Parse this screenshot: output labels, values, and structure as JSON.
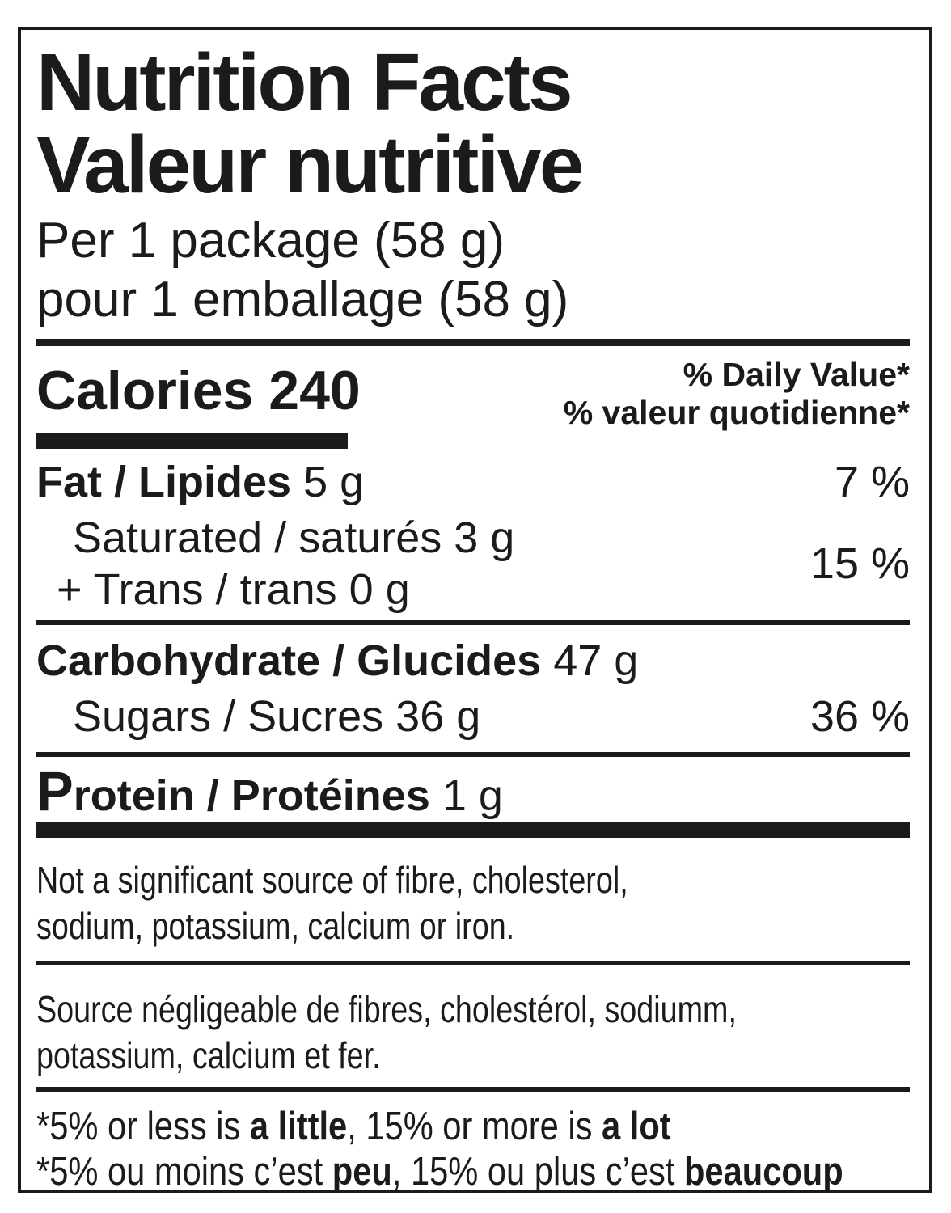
{
  "colors": {
    "ink": "#1d1a1a",
    "background": "#ffffff"
  },
  "header": {
    "title_en": "Nutrition Facts",
    "title_fr": "Valeur nutritive",
    "serving_en": "Per 1 package (58 g)",
    "serving_fr": "pour 1 emballage (58 g)"
  },
  "calories": {
    "label": "Calories",
    "value": "240"
  },
  "daily_value": {
    "header_en": "% Daily Value*",
    "header_fr": "% valeur quotidienne*"
  },
  "nutrients": {
    "fat": {
      "name": "Fat / Lipides",
      "amount": "5 g",
      "dv": "7 %"
    },
    "saturated": {
      "line1": "Saturated / saturés 3 g",
      "line2": "+ Trans / trans 0 g",
      "dv": "15 %"
    },
    "carbohydrate": {
      "name": "Carbohydrate / Glucides",
      "amount": "47 g"
    },
    "sugars": {
      "name": "Sugars / Sucres 36 g",
      "dv": "36 %"
    },
    "protein": {
      "name": "Protein / Protéines",
      "amount": "1 g"
    }
  },
  "notes": {
    "en_line1": "Not a significant source of fibre, cholesterol,",
    "en_line2": "sodium, potassium, calcium or iron.",
    "fr_line1": "Source négligeable de fibres, cholestérol, sodiumm,",
    "fr_line2": "potassium, calcium et fer."
  },
  "footnotes": {
    "en": {
      "p1": "*5% or less is ",
      "b1": "a little",
      "p2": ", 15% or more is ",
      "b2": "a lot"
    },
    "fr": {
      "p1": "*5% ou moins c’est ",
      "b1": "peu",
      "p2": ", 15% ou plus c’est ",
      "b2": "beaucoup"
    }
  }
}
